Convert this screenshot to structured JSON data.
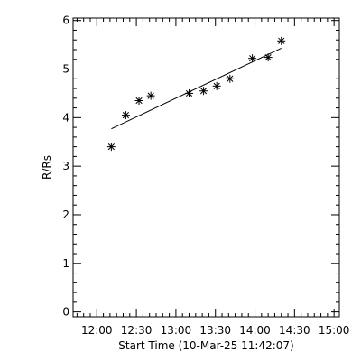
{
  "chart_data": {
    "type": "scatter",
    "title": "",
    "xlabel": "Start Time (10-Mar-25 11:42:07)",
    "ylabel": "R/Rs",
    "x_unit": "time of day",
    "xlim": [
      "11:42",
      "15:04"
    ],
    "ylim": [
      -0.1,
      6.05
    ],
    "x_ticks": [
      "12:00",
      "12:30",
      "13:00",
      "13:30",
      "14:00",
      "14:30",
      "15:00"
    ],
    "y_ticks": [
      0,
      1,
      2,
      3,
      4,
      5,
      6
    ],
    "minor_ticks": {
      "x_per_major": 6,
      "y_per_major": 5
    },
    "grid": false,
    "legend": "none",
    "marker": "asterisk",
    "series": [
      {
        "mode": "markers",
        "x": [
          "12:11",
          "12:22",
          "12:32",
          "12:41",
          "13:10",
          "13:21",
          "13:31",
          "13:41",
          "13:58",
          "14:10",
          "14:20"
        ],
        "y": [
          3.4,
          4.05,
          4.35,
          4.45,
          4.5,
          4.55,
          4.65,
          4.8,
          5.22,
          5.24,
          5.58
        ]
      },
      {
        "mode": "line",
        "x": [
          "12:11",
          "14:20"
        ],
        "y": [
          3.77,
          5.43
        ]
      }
    ]
  }
}
